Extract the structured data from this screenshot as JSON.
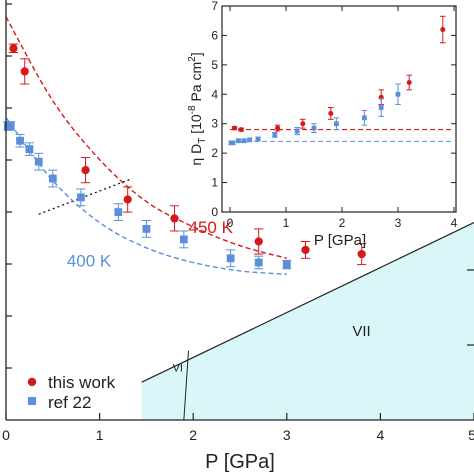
{
  "chart_data": [
    {
      "type": "scatter",
      "title": "",
      "xlabel": "P [GPa]",
      "ylabel": "",
      "xlim": [
        0,
        5
      ],
      "x_ticks": [
        0,
        1,
        2,
        3,
        4,
        5
      ],
      "x_tick_labels": [
        "0",
        "1",
        "2",
        "3",
        "4",
        "5"
      ],
      "ylim": [
        0,
        1
      ],
      "y_tick_count": 9,
      "grid": false,
      "legend_position": "bottom-left",
      "series": [
        {
          "name": "this work",
          "color": "#d7191c",
          "marker": "circle",
          "x": [
            0.08,
            0.2,
            0.85,
            1.3,
            1.8,
            2.7,
            3.2,
            3.8
          ],
          "y": [
            0.885,
            0.83,
            0.595,
            0.525,
            0.48,
            0.425,
            0.405,
            0.395
          ],
          "err": [
            0.01,
            0.03,
            0.03,
            0.03,
            0.03,
            0.03,
            0.02,
            0.025
          ]
        },
        {
          "name": "ref 22",
          "color": "#5b8fdb",
          "marker": "square",
          "x": [
            0.02,
            0.05,
            0.15,
            0.25,
            0.35,
            0.5,
            0.8,
            1.2,
            1.5,
            1.9,
            2.4,
            2.7,
            3.0
          ],
          "y": [
            0.7,
            0.7,
            0.665,
            0.645,
            0.615,
            0.575,
            0.53,
            0.495,
            0.455,
            0.43,
            0.385,
            0.375,
            0.37
          ],
          "err": [
            0.01,
            0.01,
            0.015,
            0.015,
            0.02,
            0.02,
            0.02,
            0.02,
            0.02,
            0.02,
            0.02,
            0.015,
            0.01
          ]
        }
      ],
      "fits": [
        {
          "color": "#d7191c",
          "dash": "dashed",
          "x": [
            0,
            0.5,
            1,
            1.5,
            2,
            2.5,
            3.0
          ],
          "y": [
            0.96,
            0.76,
            0.62,
            0.52,
            0.46,
            0.415,
            0.385
          ]
        },
        {
          "color": "#5b8fdb",
          "dash": "dashed",
          "x": [
            0,
            0.5,
            1,
            1.5,
            2,
            2.5,
            3.0
          ],
          "y": [
            0.72,
            0.57,
            0.47,
            0.41,
            0.375,
            0.355,
            0.347
          ]
        }
      ],
      "annotations": [
        {
          "text": "450 K",
          "color": "#d7191c",
          "x": 1.95,
          "y": 0.445
        },
        {
          "text": "400 K",
          "color": "#5b8fdb",
          "x": 0.65,
          "y": 0.365
        },
        {
          "text": "VII",
          "color": "#222222",
          "x": 3.7,
          "y": 0.2
        },
        {
          "text": "VI",
          "color": "#222222",
          "x": 1.78,
          "y": 0.115
        }
      ],
      "phase_boundary": {
        "x": [
          1.45,
          5.0
        ],
        "y": [
          0.09,
          0.47
        ],
        "fill": "#d9f7f8"
      },
      "phase_boundary_VI": {
        "x": [
          1.95,
          1.9
        ],
        "y": [
          0.165,
          0.1
        ]
      },
      "dotted_line": {
        "x": [
          0.35,
          1.35
        ],
        "y": [
          0.49,
          0.575
        ]
      },
      "legend": [
        {
          "label": "this work",
          "color": "#d7191c",
          "marker": "circle"
        },
        {
          "label": "ref 22",
          "color": "#5b8fdb",
          "marker": "square"
        }
      ]
    },
    {
      "type": "scatter",
      "title": "",
      "xlabel": "P [GPa]",
      "ylabel": "η D_T [10^-8 Pa cm^2]",
      "ylabel_main": "η D",
      "ylabel_sub": "T",
      "ylabel_rest": " [10",
      "ylabel_exp": "-8",
      "ylabel_unit": " Pa cm",
      "ylabel_unit_exp": "2",
      "ylabel_close": "]",
      "xlim": [
        0,
        4
      ],
      "x_ticks": [
        0,
        1,
        2,
        3,
        4
      ],
      "x_tick_labels": [
        "0",
        "1",
        "2",
        "3",
        "4"
      ],
      "ylim": [
        0,
        7
      ],
      "y_ticks": [
        0,
        1,
        2,
        3,
        4,
        5,
        6,
        7
      ],
      "y_tick_labels": [
        "0",
        "1",
        "2",
        "3",
        "4",
        "5",
        "6",
        "7"
      ],
      "grid": false,
      "series": [
        {
          "name": "this work",
          "color": "#d7191c",
          "marker": "circle",
          "x": [
            0.08,
            0.2,
            0.85,
            1.3,
            1.8,
            2.7,
            3.2,
            3.8
          ],
          "y": [
            2.85,
            2.8,
            2.85,
            3.0,
            3.35,
            3.9,
            4.4,
            6.2
          ],
          "err": [
            0.05,
            0.05,
            0.1,
            0.15,
            0.2,
            0.25,
            0.25,
            0.45
          ]
        },
        {
          "name": "ref 22",
          "color": "#5b8fdb",
          "marker": "square",
          "x": [
            0.02,
            0.05,
            0.15,
            0.25,
            0.35,
            0.5,
            0.8,
            1.2,
            1.5,
            1.9,
            2.4,
            2.7,
            3.0
          ],
          "y": [
            2.35,
            2.35,
            2.42,
            2.42,
            2.45,
            2.48,
            2.62,
            2.75,
            2.85,
            3.0,
            3.2,
            3.55,
            4.0
          ],
          "err": [
            0.05,
            0.05,
            0.05,
            0.05,
            0.05,
            0.06,
            0.08,
            0.12,
            0.15,
            0.2,
            0.25,
            0.3,
            0.35
          ]
        }
      ],
      "ref_lines": [
        {
          "color": "#d7191c",
          "dash": "dashed",
          "y": 2.8
        },
        {
          "color": "#5b8fdb",
          "dash": "dashed",
          "y": 2.4
        }
      ]
    }
  ]
}
